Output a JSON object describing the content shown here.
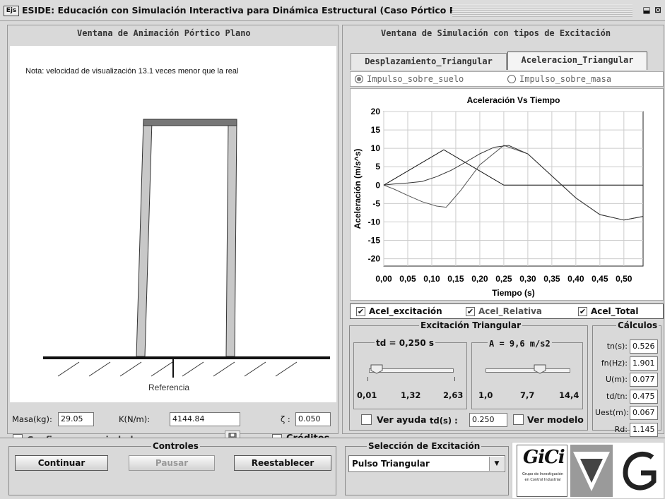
{
  "window": {
    "title": "ESIDE: Educación con Simulación Interactiva para Dinámica Estructural (Caso Pórtico Plano)",
    "app_icon": "Ejs",
    "restore_glyph": "⬓",
    "close_glyph": "⊠"
  },
  "left_panel": {
    "title": "Ventana de Animación Pórtico Plano",
    "note": "Nota: velocidad de visualización  13.1  veces menor que la real",
    "reference_label": "Referencia",
    "masa_label": "Masa(kg):",
    "masa_value": "29.05",
    "k_label": "K(N/m):",
    "k_value": "4144.84",
    "zeta_label": "ζ :",
    "zeta_value": "0.050",
    "configurar_label": "Configurar propiedades",
    "creditos_label": "Créditos"
  },
  "right_panel": {
    "title": "Ventana de Simulación con tipos de Excitación",
    "tabs": [
      {
        "label": "Desplazamiento_Triangular",
        "active": false
      },
      {
        "label": "Aceleracion_Triangular",
        "active": true
      }
    ],
    "radios": [
      {
        "label": "Impulso_sobre_suelo",
        "selected": true
      },
      {
        "label": "Impulso_sobre_masa",
        "selected": false
      }
    ],
    "legend": [
      {
        "label": "Acel_excitación",
        "checked": true
      },
      {
        "label": "Acel_Relativa",
        "checked": true
      },
      {
        "label": "Acel_Total",
        "checked": true
      }
    ],
    "excitacion": {
      "title": "Excitación Triangular",
      "td_label": "td = 0,250 s",
      "td_slider": {
        "min_label": "0,01",
        "mid_label": "1,32",
        "max_label": "2,63",
        "value": 0.25,
        "min": 0.01,
        "max": 2.63
      },
      "a_label": "A = 9,6 m/s2",
      "a_slider": {
        "min_label": "1,0",
        "mid_label": "7,7",
        "max_label": "14,4",
        "value": 9.6,
        "min": 1.0,
        "max": 14.4
      },
      "ver_ayuda": "Ver ayuda",
      "tds_label": "td(s) :",
      "tds_value": "0.250",
      "ver_modelo": "Ver modelo"
    },
    "calculos": {
      "title": "Cálculos",
      "rows": [
        {
          "label": "tn(s):",
          "value": "0.526"
        },
        {
          "label": "fn(Hz):",
          "value": "1.901"
        },
        {
          "label": "U(m):",
          "value": "0.077"
        },
        {
          "label": "td/tn:",
          "value": "0.475"
        },
        {
          "label": "Uest(m):",
          "value": "0.067"
        },
        {
          "label": "Rd:",
          "value": "1.145"
        }
      ]
    }
  },
  "controls": {
    "title": "Controles",
    "continuar": "Continuar",
    "pausar": "Pausar",
    "reestablecer": "Reestablecer"
  },
  "seleccion": {
    "title": "Selección de Excitación",
    "value": "Pulso Triangular"
  },
  "logo": {
    "text": "GiCi",
    "subtitle_1": "Grupo de Investigación",
    "subtitle_2": "en Control Industrial"
  },
  "chart_data": {
    "type": "line",
    "title": "Aceleración Vs Tiempo",
    "xlabel": "Tiempo (s)",
    "ylabel": "Aceleración (m/s^s)",
    "xlim": [
      0,
      0.54
    ],
    "ylim": [
      -22,
      20
    ],
    "x_ticks": [
      "0,00",
      "0,05",
      "0,10",
      "0,15",
      "0,20",
      "0,25",
      "0,30",
      "0,35",
      "0,40",
      "0,45",
      "0,50"
    ],
    "y_ticks": [
      20,
      15,
      10,
      5,
      0,
      -5,
      -10,
      -15,
      -20
    ],
    "grid": true,
    "series": [
      {
        "name": "Acel_excitación",
        "x": [
          0,
          0.125,
          0.25,
          0.54
        ],
        "y": [
          0,
          9.6,
          0,
          0
        ]
      },
      {
        "name": "Acel_Relativa",
        "x": [
          0,
          0.02,
          0.05,
          0.08,
          0.11,
          0.13,
          0.16,
          0.2,
          0.25,
          0.3,
          0.35,
          0.4,
          0.45,
          0.5,
          0.54
        ],
        "y": [
          0,
          -1.0,
          -2.8,
          -4.5,
          -5.7,
          -6.0,
          -1.5,
          5.5,
          10.8,
          8.5,
          2.5,
          -3.5,
          -8.0,
          -9.5,
          -8.5
        ]
      },
      {
        "name": "Acel_Total",
        "x": [
          0,
          0.02,
          0.05,
          0.08,
          0.11,
          0.14,
          0.17,
          0.2,
          0.23,
          0.26,
          0.3,
          0.35,
          0.4,
          0.45,
          0.5,
          0.54
        ],
        "y": [
          0,
          0.3,
          0.6,
          1.0,
          2.3,
          4.0,
          6.2,
          8.5,
          10.3,
          10.8,
          8.5,
          2.5,
          -3.5,
          -8.0,
          -9.5,
          -8.5
        ]
      }
    ]
  }
}
